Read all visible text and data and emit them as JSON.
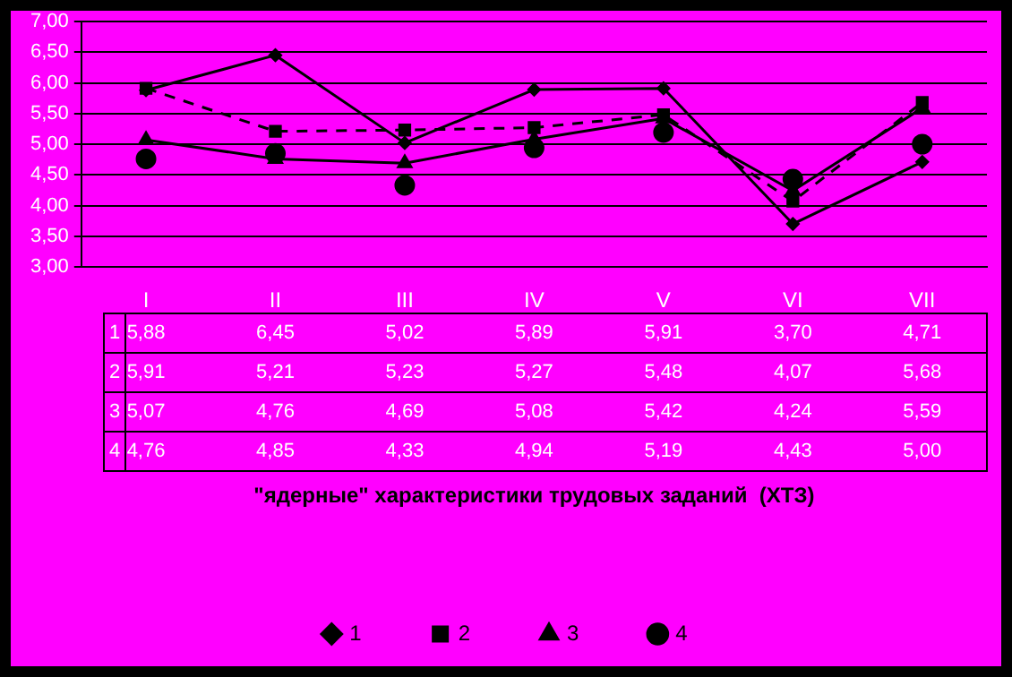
{
  "chart_data": {
    "type": "line",
    "annotations": [
      "\"ядерные\" характеристики трудовых заданий  (ХТЗ)"
    ],
    "categories": [
      "I",
      "II",
      "III",
      "IV",
      "V",
      "VI",
      "VII"
    ],
    "series": [
      {
        "name": "1",
        "color": "#000000",
        "marker": "diamond",
        "line_style": "solid",
        "values": [
          5.88,
          6.45,
          5.02,
          5.89,
          5.91,
          3.7,
          4.71
        ],
        "value_labels": [
          "5,88",
          "6,45",
          "5,02",
          "5,89",
          "5,91",
          "3,70",
          "4,71"
        ]
      },
      {
        "name": "2",
        "color": "#000000",
        "marker": "square",
        "line_style": "dashed",
        "values": [
          5.91,
          5.21,
          5.23,
          5.27,
          5.48,
          4.07,
          5.68
        ],
        "value_labels": [
          "5,91",
          "5,21",
          "5,23",
          "5,27",
          "5,48",
          "4,07",
          "5,68"
        ]
      },
      {
        "name": "3",
        "color": "#000000",
        "marker": "triangle",
        "line_style": "solid",
        "values": [
          5.07,
          4.76,
          4.69,
          5.08,
          5.42,
          4.24,
          5.59
        ],
        "value_labels": [
          "5,07",
          "4,76",
          "4,69",
          "5,08",
          "5,42",
          "4,24",
          "5,59"
        ]
      },
      {
        "name": "4",
        "type": "scatter",
        "color": "#000000",
        "marker": "circle",
        "values": [
          4.76,
          4.85,
          4.33,
          4.94,
          5.19,
          4.43,
          5.0
        ],
        "value_labels": [
          "4,76",
          "4,85",
          "4,33",
          "4,94",
          "5,19",
          "4,43",
          "5,00"
        ]
      }
    ],
    "ylim": [
      3,
      7
    ],
    "yticks": [
      {
        "value": 3,
        "label": "3,00"
      },
      {
        "value": 3.5,
        "label": "3,50"
      },
      {
        "value": 4,
        "label": "4,00"
      },
      {
        "value": 4.5,
        "label": "4,50"
      },
      {
        "value": 5,
        "label": "5,00"
      },
      {
        "value": 5.5,
        "label": "5,50"
      },
      {
        "value": 6,
        "label": "6,00"
      },
      {
        "value": 6.5,
        "label": "6,50"
      },
      {
        "value": 7,
        "label": "7,00"
      }
    ],
    "grid": "y",
    "legend": "bottom"
  }
}
